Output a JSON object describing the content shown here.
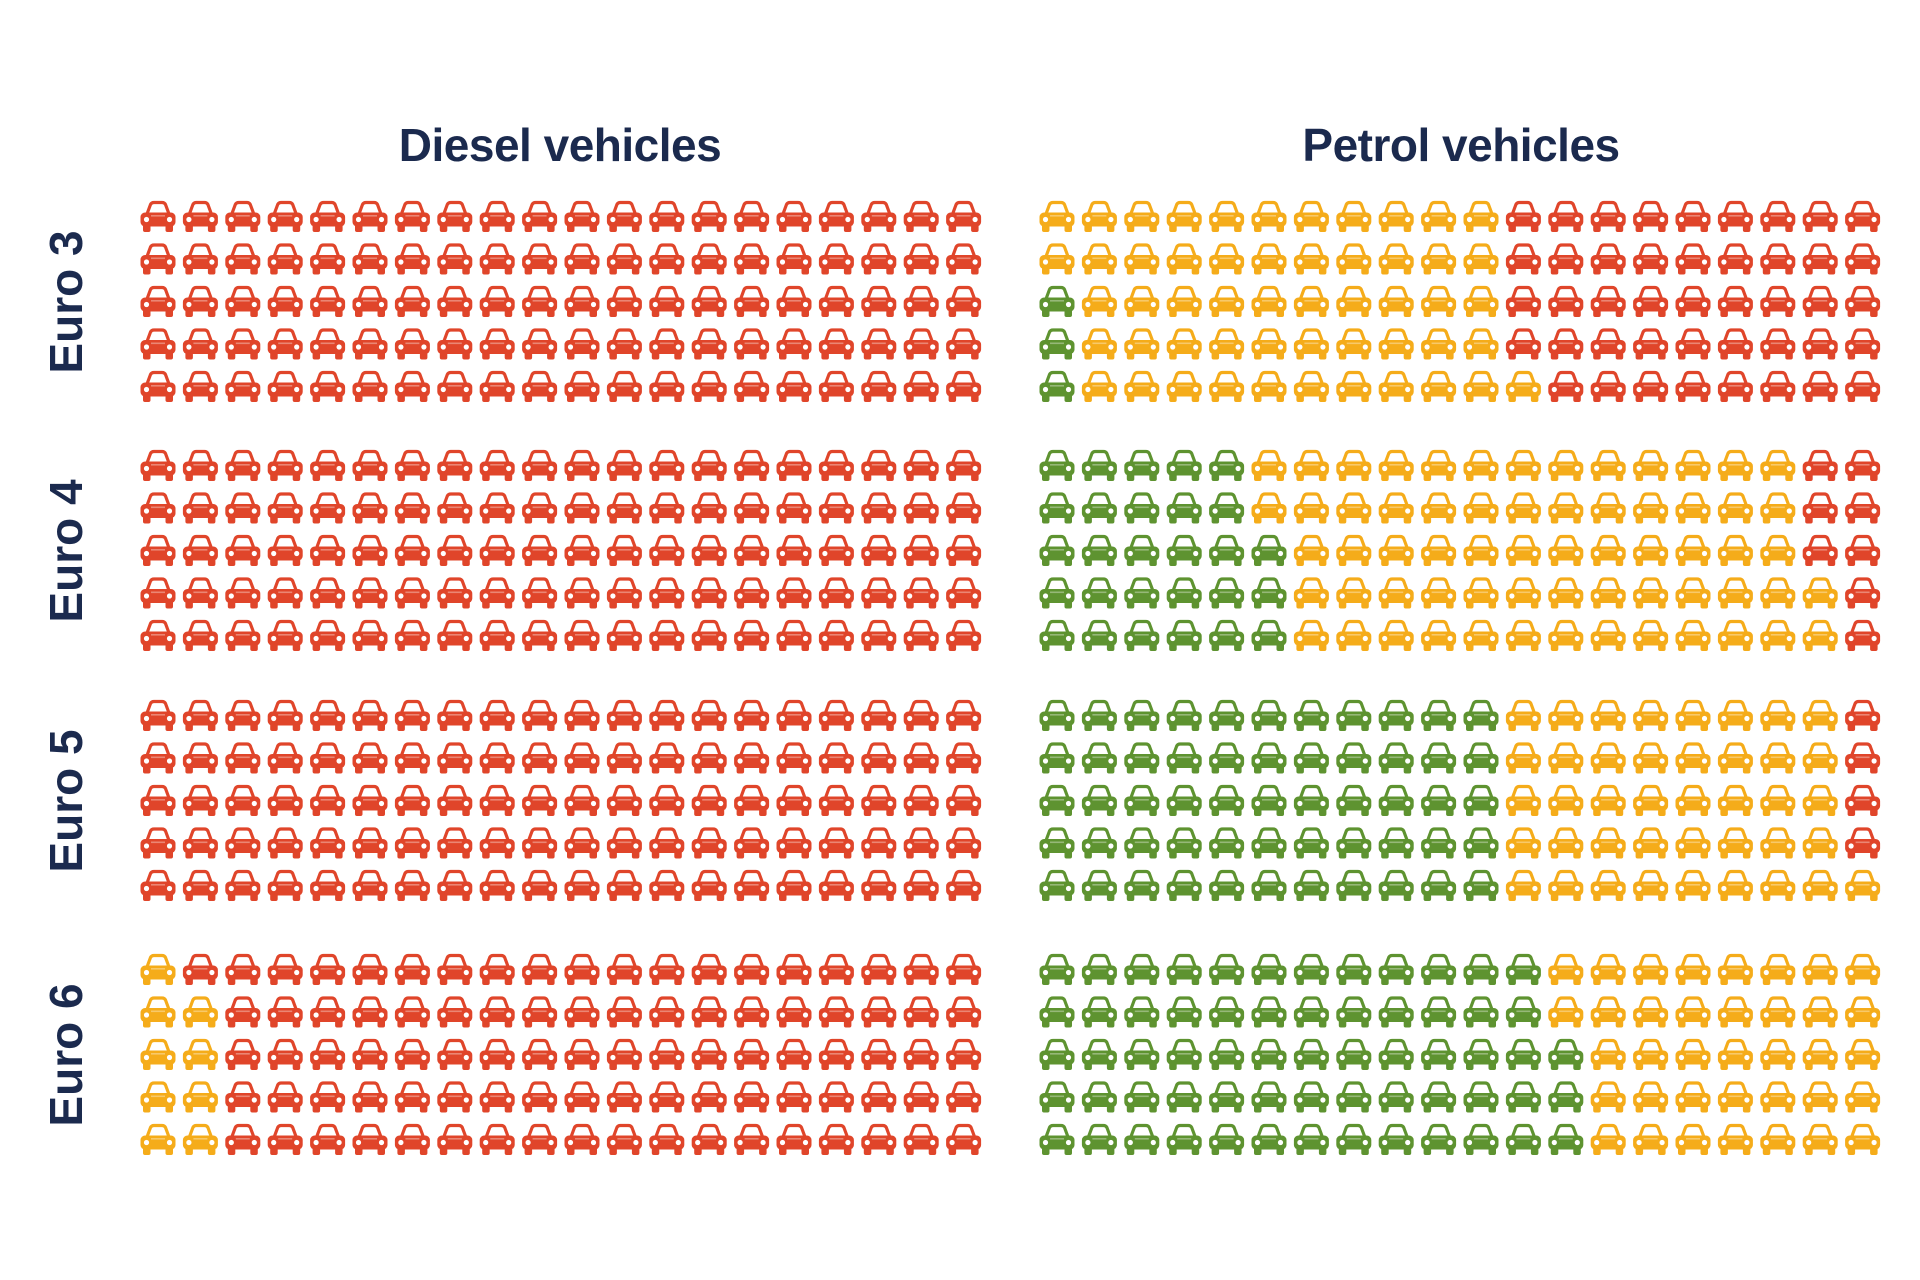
{
  "chart_data": {
    "type": "pictogram",
    "units_per_block": 100,
    "grid": {
      "rows_per_block": 5,
      "columns": 20
    },
    "column_titles": [
      "Diesel vehicles",
      "Petrol vehicles"
    ],
    "row_labels": [
      "Euro 3",
      "Euro 4",
      "Euro 5",
      "Euro 6"
    ],
    "colors": {
      "green": "#5e9330",
      "yellow": "#f5ac1a",
      "red": "#e0452a",
      "text": "#1b2a4e"
    },
    "row_format": "[green, yellow, red] count of cars per row",
    "blocks": [
      {
        "fuel": "Diesel vehicles",
        "standard": "Euro 3",
        "rows": [
          [
            0,
            0,
            20
          ],
          [
            0,
            0,
            20
          ],
          [
            0,
            0,
            20
          ],
          [
            0,
            0,
            20
          ],
          [
            0,
            0,
            20
          ]
        ],
        "totals": {
          "green": 0,
          "yellow": 0,
          "red": 100
        }
      },
      {
        "fuel": "Diesel vehicles",
        "standard": "Euro 4",
        "rows": [
          [
            0,
            0,
            20
          ],
          [
            0,
            0,
            20
          ],
          [
            0,
            0,
            20
          ],
          [
            0,
            0,
            20
          ],
          [
            0,
            0,
            20
          ]
        ],
        "totals": {
          "green": 0,
          "yellow": 0,
          "red": 100
        }
      },
      {
        "fuel": "Diesel vehicles",
        "standard": "Euro 5",
        "rows": [
          [
            0,
            0,
            20
          ],
          [
            0,
            0,
            20
          ],
          [
            0,
            0,
            20
          ],
          [
            0,
            0,
            20
          ],
          [
            0,
            0,
            20
          ]
        ],
        "totals": {
          "green": 0,
          "yellow": 0,
          "red": 100
        }
      },
      {
        "fuel": "Diesel vehicles",
        "standard": "Euro 6",
        "rows": [
          [
            0,
            1,
            19
          ],
          [
            0,
            2,
            18
          ],
          [
            0,
            2,
            18
          ],
          [
            0,
            2,
            18
          ],
          [
            0,
            2,
            18
          ]
        ],
        "totals": {
          "green": 0,
          "yellow": 9,
          "red": 91
        }
      },
      {
        "fuel": "Petrol vehicles",
        "standard": "Euro 3",
        "rows": [
          [
            0,
            11,
            9
          ],
          [
            0,
            11,
            9
          ],
          [
            1,
            10,
            9
          ],
          [
            1,
            10,
            9
          ],
          [
            1,
            11,
            8
          ]
        ],
        "totals": {
          "green": 3,
          "yellow": 53,
          "red": 44
        }
      },
      {
        "fuel": "Petrol vehicles",
        "standard": "Euro 4",
        "rows": [
          [
            5,
            13,
            2
          ],
          [
            5,
            13,
            2
          ],
          [
            6,
            12,
            2
          ],
          [
            6,
            13,
            1
          ],
          [
            6,
            13,
            1
          ]
        ],
        "totals": {
          "green": 28,
          "yellow": 64,
          "red": 8
        }
      },
      {
        "fuel": "Petrol vehicles",
        "standard": "Euro 5",
        "rows": [
          [
            11,
            8,
            1
          ],
          [
            11,
            8,
            1
          ],
          [
            11,
            8,
            1
          ],
          [
            11,
            8,
            1
          ],
          [
            11,
            9,
            0
          ]
        ],
        "totals": {
          "green": 55,
          "yellow": 41,
          "red": 4
        }
      },
      {
        "fuel": "Petrol vehicles",
        "standard": "Euro 6",
        "rows": [
          [
            12,
            8,
            0
          ],
          [
            12,
            8,
            0
          ],
          [
            13,
            7,
            0
          ],
          [
            13,
            7,
            0
          ],
          [
            13,
            7,
            0
          ]
        ],
        "totals": {
          "green": 63,
          "yellow": 37,
          "red": 0
        }
      }
    ]
  }
}
